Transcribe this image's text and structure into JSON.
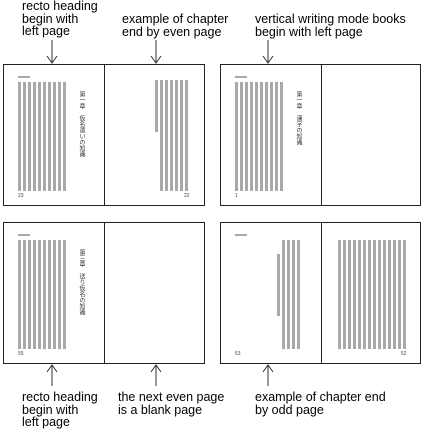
{
  "captions": {
    "top_1": "recto heading\nbegin with\nleft page",
    "top_2": "example of chapter\nend by even page",
    "top_3": "vertical writing mode books\nbegin with left page",
    "bottom_1": "recto heading\nbegin with\nleft page",
    "bottom_2": "the next even page\nis a blank page",
    "bottom_3": "example of chapter end\nby odd page"
  },
  "headings": {
    "tl": "第一章　仮名遣いの知識",
    "tr": "第一章　漢字の知識",
    "bl": "第三章　送り仮名の知識"
  },
  "page_numbers": {
    "tl_left": "23",
    "tl_right": "22",
    "tr_left": "1",
    "bl_left": "55",
    "br_left": "53",
    "br_right": "52"
  },
  "colors": {
    "text_bar": "#a9a9a9",
    "border": "#222222"
  }
}
